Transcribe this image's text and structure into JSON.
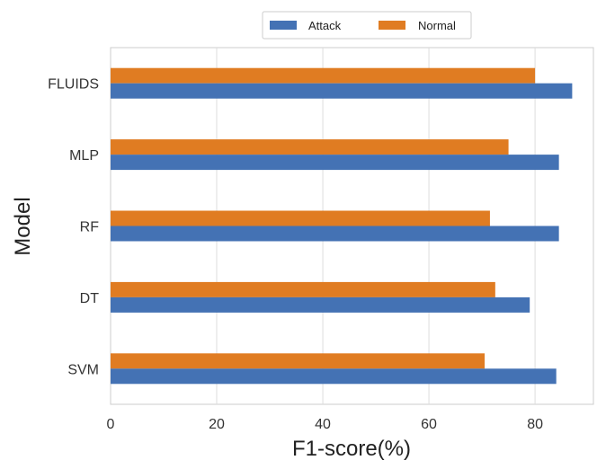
{
  "chart_data": {
    "type": "bar",
    "orientation": "horizontal",
    "categories": [
      "SVM",
      "DT",
      "RF",
      "MLP",
      "FLUIDS"
    ],
    "series": [
      {
        "name": "Attack",
        "values": [
          84,
          79,
          84.5,
          84.5,
          87
        ],
        "color": "#4472b4"
      },
      {
        "name": "Normal",
        "values": [
          70.5,
          72.5,
          71.5,
          75,
          80
        ],
        "color": "#e07c22"
      }
    ],
    "xlabel": "F1-score(%)",
    "ylabel": "Model",
    "xlim": [
      0,
      91
    ],
    "xticks": [
      "0",
      "20",
      "40",
      "60",
      "80"
    ],
    "grid": true,
    "legend": "top-center"
  }
}
